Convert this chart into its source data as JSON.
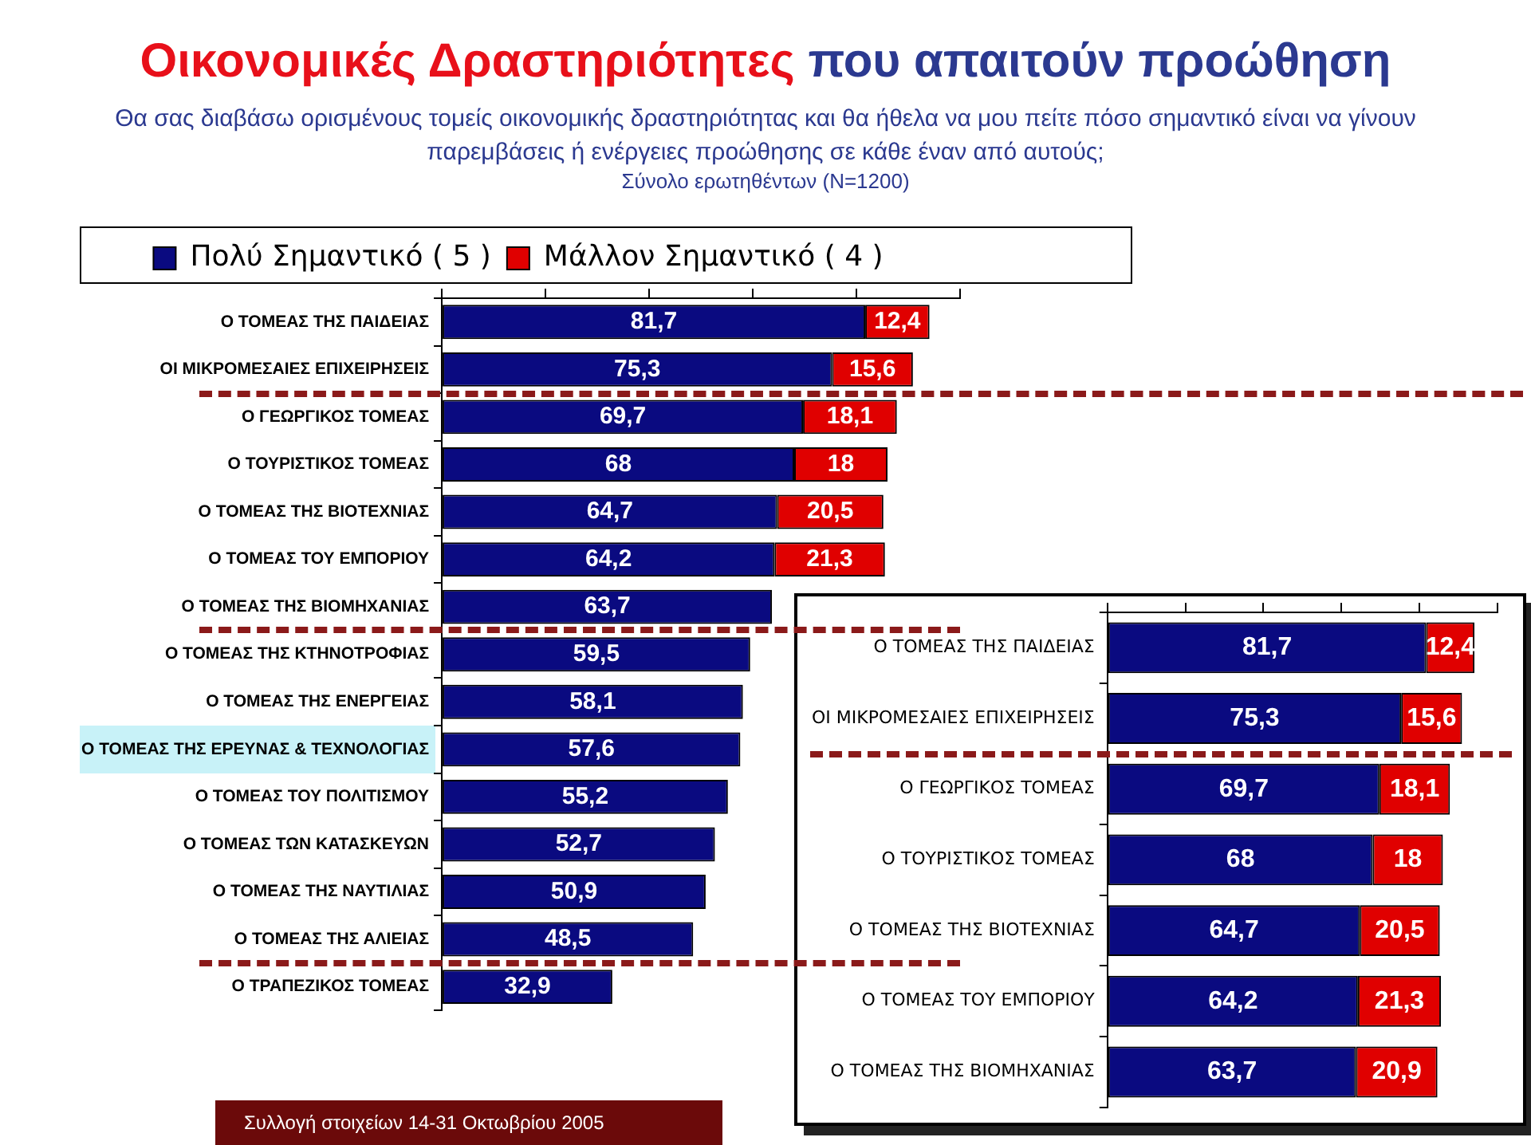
{
  "chart_data": [
    {
      "type": "bar",
      "orientation": "horizontal",
      "stacked": true,
      "legend": "top",
      "title": "Οικονομικές Δραστηριότητες που απαιτούν προώθηση",
      "subtitle": "Θα σας διαβάσω ορισμένους τομείς οικονομικής δραστηριότητας και θα ήθελα να μου πείτε πόσο σημαντικό είναι να γίνουν παρεμβάσεις ή ενέργειες προώθησης σε κάθε έναν από αυτούς;",
      "annotations": [
        "Σύνολο ερωτηθέντων (N=1200)",
        "Συλλογή στοιχείων 14-31 Οκτωβρίου 2005"
      ],
      "categories": [
        "Ο ΤΟΜΕΑΣ ΤΗΣ ΠΑΙΔΕΙΑΣ",
        "ΟΙ ΜΙΚΡΟΜΕΣΑΙΕΣ ΕΠΙΧΕΙΡΗΣΕΙΣ",
        "Ο ΓΕΩΡΓΙΚΟΣ ΤΟΜΕΑΣ",
        "Ο ΤΟΥΡΙΣΤΙΚΟΣ ΤΟΜΕΑΣ",
        "Ο ΤΟΜΕΑΣ ΤΗΣ ΒΙΟΤΕΧΝΙΑΣ",
        "Ο ΤΟΜΕΑΣ ΤΟΥ ΕΜΠΟΡΙΟΥ",
        "Ο ΤΟΜΕΑΣ ΤΗΣ ΒΙΟΜΗΧΑΝΙΑΣ",
        "Ο ΤΟΜΕΑΣ ΤΗΣ ΚΤΗΝΟΤΡΟΦΙΑΣ",
        "Ο ΤΟΜΕΑΣ ΤΗΣ ΕΝΕΡΓΕΙΑΣ",
        "Ο ΤΟΜΕΑΣ ΤΗΣ ΕΡΕΥΝΑΣ & ΤΕΧΝΟΛΟΓΙΑΣ",
        "Ο ΤΟΜΕΑΣ ΤΟΥ ΠΟΛΙΤΙΣΜΟΥ",
        "Ο ΤΟΜΕΑΣ ΤΩΝ ΚΑΤΑΣΚΕΥΩΝ",
        "Ο ΤΟΜΕΑΣ ΤΗΣ ΝΑΥΤΙΛΙΑΣ",
        "Ο ΤΟΜΕΑΣ ΤΗΣ ΑΛΙΕΙΑΣ",
        "Ο ΤΡΑΠΕΖΙΚΟΣ ΤΟΜΕΑΣ"
      ],
      "series": [
        {
          "name": "Πολύ Σημαντικό ( 5 )",
          "color": "#0a0a80",
          "values": [
            81.7,
            75.3,
            69.7,
            68,
            64.7,
            64.2,
            63.7,
            59.5,
            58.1,
            57.6,
            55.2,
            52.7,
            50.9,
            48.5,
            32.9
          ],
          "value_labels": [
            "81,7",
            "75,3",
            "69,7",
            "68",
            "64,7",
            "64,2",
            "63,7",
            "59,5",
            "58,1",
            "57,6",
            "55,2",
            "52,7",
            "50,9",
            "48,5",
            "32,9"
          ]
        },
        {
          "name": "Μάλλον Σημαντικό ( 4 )",
          "color": "#e00000",
          "values": [
            12.4,
            15.6,
            18.1,
            18,
            20.5,
            21.3,
            null,
            null,
            null,
            null,
            null,
            null,
            null,
            null,
            null
          ],
          "value_labels": [
            "12,4",
            "15,6",
            "18,1",
            "18",
            "20,5",
            "21,3",
            null,
            null,
            null,
            null,
            null,
            null,
            null,
            null,
            null
          ]
        }
      ]
    },
    {
      "type": "bar",
      "orientation": "horizontal",
      "stacked": true,
      "categories": [
        "Ο ΤΟΜΕΑΣ ΤΗΣ ΠΑΙΔΕΙΑΣ",
        "ΟΙ ΜΙΚΡΟΜΕΣΑΙΕΣ ΕΠΙΧΕΙΡΗΣΕΙΣ",
        "Ο ΓΕΩΡΓΙΚΟΣ ΤΟΜΕΑΣ",
        "Ο ΤΟΥΡΙΣΤΙΚΟΣ ΤΟΜΕΑΣ",
        "Ο ΤΟΜΕΑΣ ΤΗΣ ΒΙΟΤΕΧΝΙΑΣ",
        "Ο ΤΟΜΕΑΣ ΤΟΥ ΕΜΠΟΡΙΟΥ",
        "Ο ΤΟΜΕΑΣ ΤΗΣ ΒΙΟΜΗΧΑΝΙΑΣ"
      ],
      "series": [
        {
          "color": "#0a0a80",
          "values": [
            81.7,
            75.3,
            69.7,
            68,
            64.7,
            64.2,
            63.7
          ],
          "value_labels": [
            "81,7",
            "75,3",
            "69,7",
            "68",
            "64,7",
            "64,2",
            "63,7"
          ]
        },
        {
          "color": "#e00000",
          "values": [
            12.4,
            15.6,
            18.1,
            18,
            20.5,
            21.3,
            20.9
          ],
          "value_labels": [
            "12,4",
            "15,6",
            "18,1",
            "18",
            "20,5",
            "21,3",
            "20,9"
          ]
        }
      ]
    }
  ]
}
